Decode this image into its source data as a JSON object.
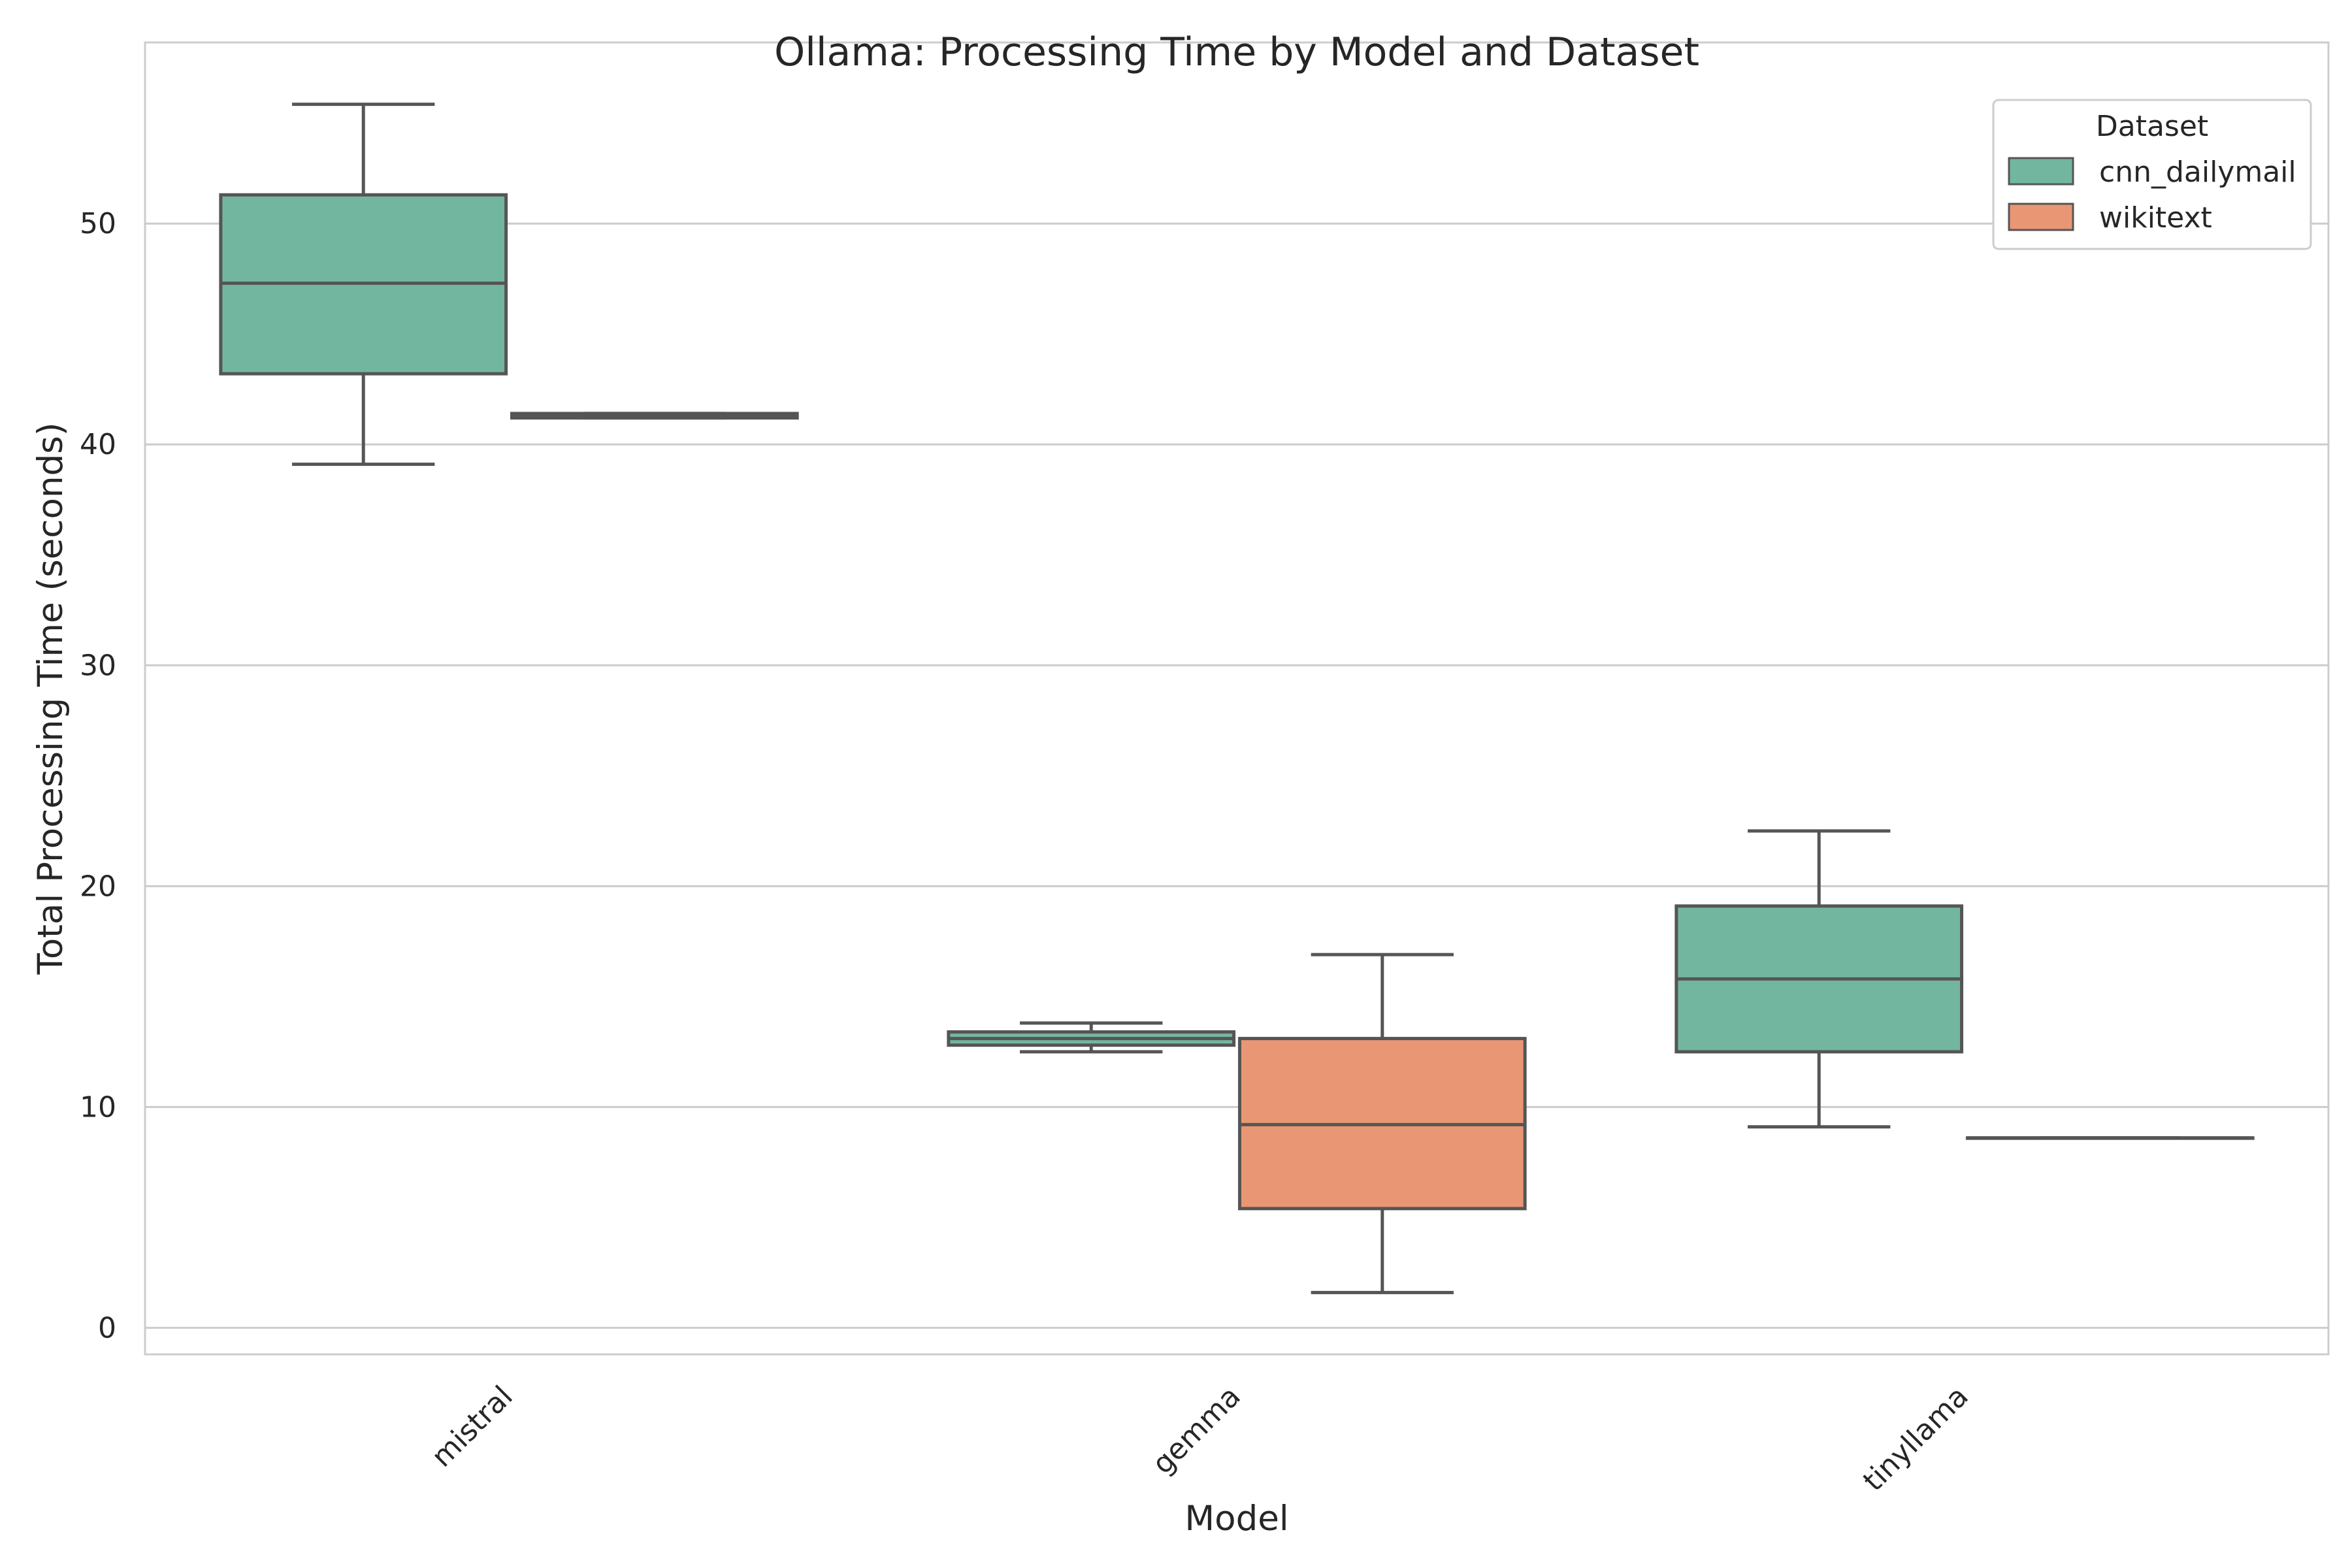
{
  "chart_data": {
    "type": "box",
    "title": "Ollama: Processing Time by Model and Dataset",
    "xlabel": "Model",
    "ylabel": "Total Processing Time (seconds)",
    "categories": [
      "mistral",
      "gemma",
      "tinyllama"
    ],
    "y_ticks": [
      0,
      10,
      20,
      30,
      40,
      50
    ],
    "ylim": [
      -1.2,
      58.2
    ],
    "grid": "horizontal",
    "legend": {
      "title": "Dataset",
      "position": "top-right"
    },
    "series": [
      {
        "name": "cnn_dailymail",
        "color": "#73b6a0",
        "boxes": [
          {
            "min": 39.1,
            "q1": 43.2,
            "median": 47.3,
            "q3": 51.3,
            "max": 55.4
          },
          {
            "min": 12.5,
            "q1": 12.8,
            "median": 13.1,
            "q3": 13.4,
            "max": 13.8
          },
          {
            "min": 9.1,
            "q1": 12.5,
            "median": 15.8,
            "q3": 19.1,
            "max": 22.5
          }
        ]
      },
      {
        "name": "wikitext",
        "color": "#e99675",
        "boxes": [
          {
            "min": 41.2,
            "q1": 41.2,
            "median": 41.3,
            "q3": 41.4,
            "max": 41.4
          },
          {
            "min": 1.6,
            "q1": 5.4,
            "median": 9.2,
            "q3": 13.1,
            "max": 16.9
          },
          {
            "min": 8.6,
            "q1": 8.6,
            "median": 8.6,
            "q3": 8.6,
            "max": 8.6
          }
        ]
      }
    ]
  }
}
